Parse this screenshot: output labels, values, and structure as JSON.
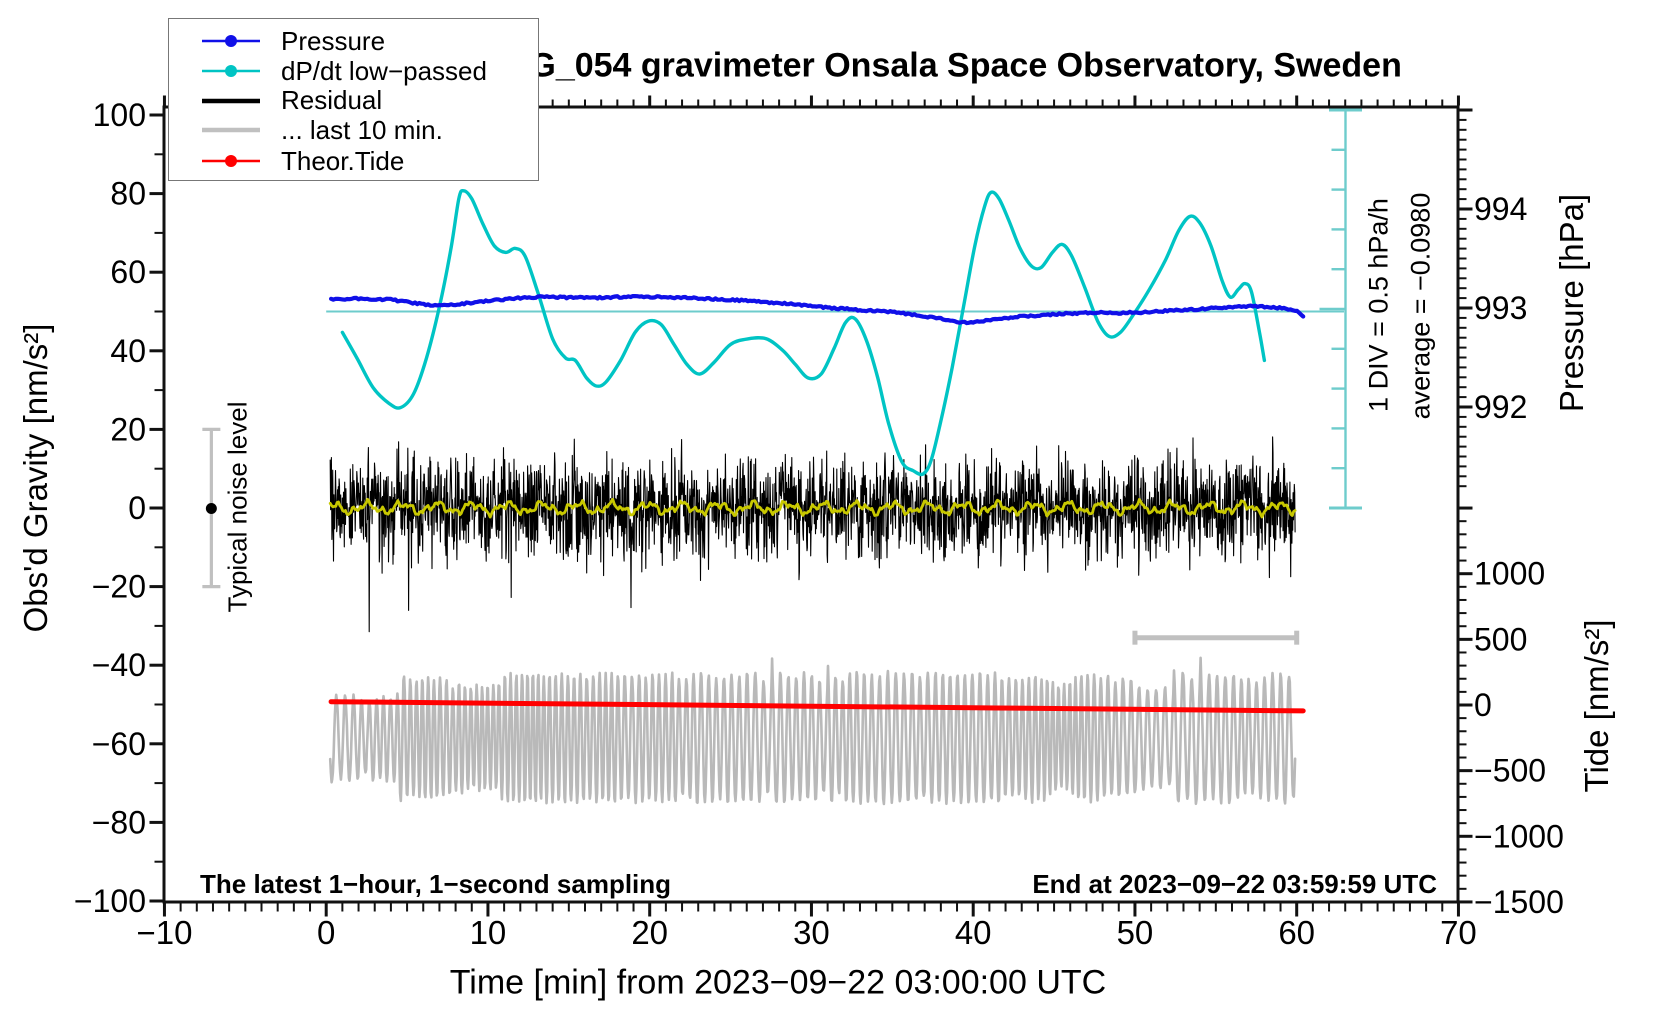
{
  "title": "SCG_054 gravimeter Onsala Space Observatory, Sweden",
  "annotations": {
    "div_note": "1 DIV = 0.5 hPa/h",
    "average_note": "average = −0.0980",
    "noise_label": "Typical noise level",
    "sampling_note": "The latest 1−hour, 1−second sampling",
    "end_note": "End at 2023−09−22 03:59:59 UTC"
  },
  "legend": {
    "items": [
      {
        "label": "Pressure",
        "color": "#1010e8",
        "line_width": 2.5,
        "dot": true
      },
      {
        "label": "dP/dt low−passed",
        "color": "#00c4c4",
        "line_width": 2.5,
        "dot": true
      },
      {
        "label": "Residual",
        "color": "#000000",
        "line_width": 4.5,
        "dot": false
      },
      {
        "label": "... last 10 min.",
        "color": "#c0c0c0",
        "line_width": 4.5,
        "dot": false
      },
      {
        "label": "Theor.Tide",
        "color": "#ff0000",
        "line_width": 2.5,
        "dot": true
      }
    ]
  },
  "axes": {
    "x": {
      "title": "Time [min] from 2023−09−22 03:00:00 UTC",
      "range": [
        -10,
        70
      ],
      "major_tick_step": 10,
      "minor_tick_step": 1,
      "tick_values": [
        -10,
        0,
        10,
        20,
        30,
        40,
        50,
        60,
        70
      ],
      "tick_labels": [
        "−10",
        "0",
        "10",
        "20",
        "30",
        "40",
        "50",
        "60",
        "70"
      ]
    },
    "gravity": {
      "title": "Obs'd Gravity [nm/s²]",
      "range": [
        -100,
        100
      ],
      "major_tick_step": 20,
      "minor_tick_step": 10,
      "tick_values": [
        100,
        80,
        60,
        40,
        20,
        0,
        -20,
        -40,
        -60,
        -80,
        -100
      ],
      "tick_labels": [
        "100",
        "80",
        "60",
        "40",
        "20",
        "0",
        "−20",
        "−40",
        "−60",
        "−80",
        "−100"
      ]
    },
    "pressure": {
      "title": "Pressure [hPa]",
      "minor_tick_step": 0.1,
      "tick_values": [
        994,
        993,
        992
      ],
      "tick_labels": [
        "994",
        "993",
        "992"
      ]
    },
    "tide": {
      "title": "Tide [nm/s²]",
      "minor_tick_step": 100,
      "tick_values": [
        1000,
        500,
        0,
        -500,
        -1000,
        -1500
      ],
      "tick_labels": [
        "1000",
        "500",
        "0",
        "−500",
        "−1000",
        "−1500"
      ]
    }
  },
  "chart_data": {
    "type": "line",
    "grid": false,
    "legend_position": "top-left",
    "colors": {
      "pressure_blue": "#1010e8",
      "dpdt_cyan": "#00c4c4",
      "ruler_cyan": "#6ecccc",
      "residual_black": "#000000",
      "lowpass_yellow": "#c8c800",
      "last10_gray": "#b9b9b9",
      "silver": "#c0c0c0",
      "tide_red": "#ff0000",
      "frame": "#111111"
    },
    "series": [
      {
        "name": "Pressure",
        "axis": "pressure",
        "unit": "hPa",
        "color": "#1010e8",
        "points": {
          "t_min": [
            0.3,
            2,
            4,
            6.3,
            8,
            10,
            12,
            13.5,
            15,
            16.5,
            18,
            19.5,
            21,
            23,
            25,
            27,
            29,
            31,
            33,
            35,
            36.5,
            38,
            39,
            39.6,
            40.5,
            41.5,
            43,
            44.5,
            46,
            47.5,
            49,
            50.5,
            52,
            53.5,
            55,
            56.3,
            57.3,
            58.3,
            59.2,
            59.9,
            60.4
          ],
          "hpa": [
            993.09,
            993.094,
            993.086,
            993.028,
            993.035,
            993.071,
            993.102,
            993.114,
            993.106,
            993.102,
            993.11,
            993.114,
            993.11,
            993.098,
            993.083,
            993.063,
            993.035,
            993.004,
            992.98,
            992.961,
            992.929,
            992.89,
            992.859,
            992.851,
            992.862,
            992.89,
            992.914,
            992.933,
            992.945,
            992.953,
            992.949,
            992.957,
            992.972,
            992.984,
            993.0,
            993.012,
            993.02,
            993.012,
            992.996,
            992.98,
            992.914
          ]
        }
      },
      {
        "name": "dP/dt low−passed",
        "axis": "dpdt",
        "unit": "hPa/h",
        "color": "#00c4c4",
        "scale_note": "1 DIV = 0.5 hPa/h",
        "average_hpa_per_h": -0.098,
        "points": {
          "t_min": [
            1.0,
            1.9,
            2.9,
            3.9,
            4.6,
            5.4,
            6.2,
            7.0,
            7.7,
            8.2,
            8.5,
            9.0,
            9.7,
            10.4,
            11.1,
            11.7,
            12.3,
            13.1,
            14.0,
            14.8,
            15.4,
            16.1,
            16.7,
            17.3,
            18.2,
            19.1,
            19.9,
            20.7,
            21.5,
            22.3,
            23.1,
            24.0,
            25.0,
            26.1,
            27.2,
            28.2,
            29.0,
            29.8,
            30.6,
            31.4,
            32.1,
            32.7,
            33.4,
            34.1,
            34.8,
            35.6,
            36.3,
            36.9,
            37.4,
            38.0,
            38.7,
            39.4,
            40.1,
            40.7,
            41.1,
            41.6,
            42.2,
            42.9,
            43.6,
            44.2,
            44.9,
            45.5,
            46.1,
            46.9,
            47.7,
            48.4,
            49.1,
            49.9,
            50.9,
            51.9,
            52.7,
            53.4,
            54.0,
            54.7,
            55.4,
            55.9,
            56.4,
            56.8,
            57.2,
            57.7,
            58.0
          ],
          "hpa_per_h": [
            -0.39,
            -0.71,
            -1.08,
            -1.28,
            -1.33,
            -1.16,
            -0.71,
            -0.07,
            0.64,
            1.28,
            1.38,
            1.28,
            0.96,
            0.69,
            0.61,
            0.66,
            0.56,
            0.1,
            -0.47,
            -0.71,
            -0.74,
            -0.96,
            -1.06,
            -1.01,
            -0.74,
            -0.39,
            -0.25,
            -0.29,
            -0.54,
            -0.79,
            -0.91,
            -0.76,
            -0.54,
            -0.47,
            -0.47,
            -0.61,
            -0.79,
            -0.96,
            -0.91,
            -0.59,
            -0.27,
            -0.22,
            -0.49,
            -0.96,
            -1.55,
            -2.01,
            -2.12,
            -2.16,
            -1.99,
            -1.5,
            -0.83,
            -0.07,
            0.69,
            1.18,
            1.36,
            1.28,
            1.01,
            0.66,
            0.44,
            0.42,
            0.61,
            0.71,
            0.56,
            0.17,
            -0.25,
            -0.44,
            -0.39,
            -0.17,
            0.15,
            0.52,
            0.88,
            1.06,
            0.98,
            0.69,
            0.25,
            0.05,
            0.15,
            0.22,
            0.12,
            -0.39,
            -0.74
          ]
        }
      },
      {
        "name": "Residual",
        "axis": "gravity",
        "unit": "nm/s²",
        "color": "#000000",
        "t_range_min": [
          0.25,
          59.9
        ],
        "noise": {
          "mean": 0,
          "std": 6.2,
          "spike_probability": 0.013,
          "spike_gain": 2.1,
          "max_abs": 33
        }
      },
      {
        "name": "Residual low-passed",
        "axis": "gravity",
        "unit": "nm/s²",
        "color": "#c8c800",
        "t_range_min": [
          0.25,
          59.9
        ],
        "components": [
          {
            "amp": 1.05,
            "freq": 2.9,
            "phase": 0.5
          },
          {
            "amp": 0.62,
            "freq": 7.1,
            "phase": 2.1
          },
          {
            "amp": 0.42,
            "freq": 13.7,
            "phase": 4.0
          },
          {
            "amp": 0.25,
            "freq": 27.0,
            "phase": 1.0
          }
        ]
      },
      {
        "name": "... last 10 min.",
        "axis": "tide",
        "unit": "nm/s²",
        "color": "#b9b9b9",
        "t_range_min": [
          0.25,
          59.9
        ],
        "noise": {
          "mean": -250,
          "amplitude_range": [
            205,
            500
          ],
          "period_range_min": [
            0.33,
            0.75
          ]
        }
      },
      {
        "name": "Theor.Tide",
        "axis": "tide",
        "unit": "nm/s²",
        "color": "#ff0000",
        "points": {
          "t_min": [
            0.3,
            30,
            60.4
          ],
          "nms2": [
            25,
            -9,
            -45
          ]
        }
      }
    ],
    "scale_bar": {
      "from_min": 50,
      "to_min": 60,
      "gravity_level": -33
    },
    "noise_level_bar": {
      "t_min": -7.1,
      "gravity_range": [
        -20,
        20
      ]
    },
    "average_line": {
      "gravity_level": 50,
      "from_min": 0
    }
  }
}
